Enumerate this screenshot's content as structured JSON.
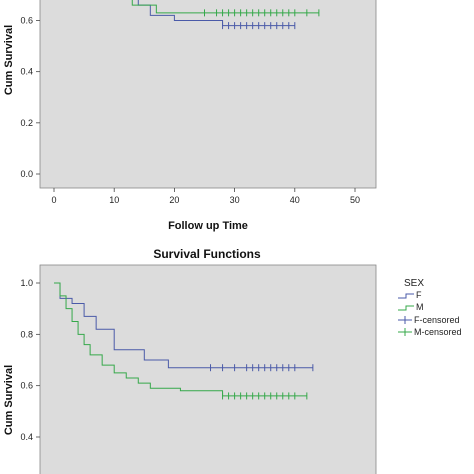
{
  "chart_data": [
    {
      "type": "line",
      "title": "",
      "xlabel": "Follow up Time",
      "ylabel": "Cum Survival",
      "xlim": [
        0,
        50
      ],
      "ylim": [
        0.0,
        0.7
      ],
      "x_ticks": [
        "0",
        "10",
        "20",
        "30",
        "40",
        "50"
      ],
      "y_ticks": [
        "0.0",
        "0.2",
        "0.4",
        "0.6"
      ],
      "grid": false,
      "series": [
        {
          "name": "F",
          "color": "#4a5aa8",
          "steps": [
            [
              0,
              0.72
            ],
            [
              11,
              0.7
            ],
            [
              14,
              0.66
            ],
            [
              16,
              0.62
            ],
            [
              20,
              0.6
            ],
            [
              28,
              0.58
            ],
            [
              40,
              0.58
            ]
          ],
          "censored_x": [
            28,
            29,
            30,
            31,
            32,
            33,
            34,
            35,
            36,
            37,
            38,
            39,
            40
          ]
        },
        {
          "name": "M",
          "color": "#35a84a",
          "steps": [
            [
              0,
              0.72
            ],
            [
              13,
              0.66
            ],
            [
              17,
              0.63
            ],
            [
              44,
              0.63
            ]
          ],
          "censored_x": [
            25,
            27,
            28,
            29,
            30,
            31,
            32,
            33,
            34,
            35,
            36,
            37,
            38,
            39,
            40,
            42,
            44
          ]
        }
      ]
    },
    {
      "type": "line",
      "title": "Survival Functions",
      "xlabel": "",
      "ylabel": "Cum Survival",
      "xlim": [
        0,
        50
      ],
      "ylim": [
        0.3,
        1.0
      ],
      "y_ticks": [
        "0.4",
        "0.6",
        "0.8",
        "1.0"
      ],
      "grid": false,
      "legend": {
        "title": "SEX",
        "position": "right",
        "entries": [
          "F",
          "M",
          "F-censored",
          "M-censored"
        ]
      },
      "series": [
        {
          "name": "F",
          "color": "#4a5aa8",
          "steps": [
            [
              0,
              1.0
            ],
            [
              1,
              0.94
            ],
            [
              3,
              0.92
            ],
            [
              5,
              0.87
            ],
            [
              7,
              0.82
            ],
            [
              10,
              0.74
            ],
            [
              15,
              0.7
            ],
            [
              19,
              0.67
            ],
            [
              43,
              0.67
            ]
          ],
          "censored_x": [
            26,
            28,
            30,
            32,
            33,
            34,
            35,
            36,
            37,
            38,
            39,
            40,
            43
          ]
        },
        {
          "name": "M",
          "color": "#35a84a",
          "steps": [
            [
              0,
              1.0
            ],
            [
              1,
              0.95
            ],
            [
              2,
              0.9
            ],
            [
              3,
              0.85
            ],
            [
              4,
              0.8
            ],
            [
              5,
              0.76
            ],
            [
              6,
              0.72
            ],
            [
              8,
              0.68
            ],
            [
              10,
              0.65
            ],
            [
              12,
              0.63
            ],
            [
              14,
              0.61
            ],
            [
              16,
              0.59
            ],
            [
              21,
              0.58
            ],
            [
              28,
              0.56
            ],
            [
              42,
              0.56
            ]
          ],
          "censored_x": [
            28,
            29,
            30,
            31,
            32,
            33,
            34,
            35,
            36,
            37,
            38,
            39,
            40,
            42
          ]
        }
      ]
    }
  ]
}
